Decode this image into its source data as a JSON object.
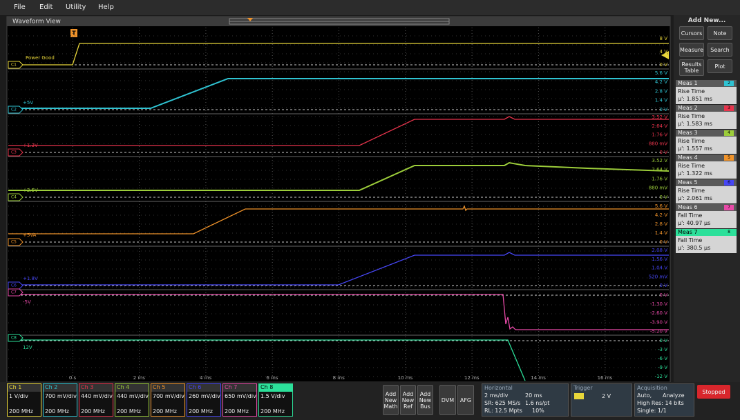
{
  "menu": [
    "File",
    "Edit",
    "Utility",
    "Help"
  ],
  "waveform_view": {
    "title": "Waveform View",
    "trigger_marker": "T",
    "x_labels": [
      "0 s",
      "2 ms",
      "4 ms",
      "6 ms",
      "8 ms",
      "10 ms",
      "12 ms",
      "14 ms",
      "16 ms"
    ],
    "channels": [
      {
        "marker": "C1",
        "label": "Power Good",
        "color": "#e8d63a",
        "scale": [
          "8 V",
          "4 V",
          "0 V"
        ]
      },
      {
        "marker": "C2",
        "label": "+5V",
        "color": "#2fc3d2",
        "scale": [
          "5.6 V",
          "4.2 V",
          "2.8 V",
          "1.4 V",
          "0 V"
        ]
      },
      {
        "marker": "C3",
        "label": "+1.3V",
        "color": "#e8344c",
        "scale": [
          "3.52 V",
          "2.64 V",
          "1.76 V",
          "880 mV",
          "0 V"
        ]
      },
      {
        "marker": "C4",
        "label": "+2.5V",
        "color": "#9ccd3a",
        "scale": [
          "3.52 V",
          "2.64 V",
          "1.76 V",
          "880 mV",
          "0 V"
        ]
      },
      {
        "marker": "C5",
        "label": "+5VA",
        "color": "#f0932a",
        "scale": [
          "5.6 V",
          "4.2 V",
          "2.8 V",
          "1.4 V",
          "0 V"
        ]
      },
      {
        "marker": "C6",
        "label": "+1.8V",
        "color": "#4646f5",
        "scale": [
          "2.08 V",
          "1.56 V",
          "1.04 V",
          "520 mV",
          "0 V"
        ]
      },
      {
        "marker": "C7",
        "label": "-5V",
        "color": "#e84aa8",
        "scale": [
          "0 V",
          "-1.30 V",
          "-2.60 V",
          "-3.90 V",
          "-5.20 V"
        ]
      },
      {
        "marker": "C8",
        "label": "12V",
        "color": "#2ce09a",
        "scale": [
          "0 V",
          "-3 V",
          "-6 V",
          "-9 V",
          "-12 V"
        ]
      }
    ]
  },
  "side_panel": {
    "title": "Add New...",
    "buttons": [
      "Cursors",
      "Note",
      "Measure",
      "Search",
      "Results Table",
      "Plot"
    ],
    "measurements": [
      {
        "name": "Meas 1",
        "source": "2",
        "type": "Rise Time",
        "value": "µ': 1.851 ms"
      },
      {
        "name": "Meas 2",
        "source": "3",
        "type": "Rise Time",
        "value": "µ': 1.583 ms"
      },
      {
        "name": "Meas 3",
        "source": "4",
        "type": "Rise Time",
        "value": "µ': 1.557 ms"
      },
      {
        "name": "Meas 4",
        "source": "5",
        "type": "Rise Time",
        "value": "µ': 1.322 ms"
      },
      {
        "name": "Meas 5",
        "source": "6",
        "type": "Rise Time",
        "value": "µ': 2.061 ms"
      },
      {
        "name": "Meas 6",
        "source": "7",
        "type": "Fall Time",
        "value": "µ': 40.97 µs"
      },
      {
        "name": "Meas 7",
        "source": "8",
        "type": "Fall Time",
        "value": "µ': 380.5 µs"
      }
    ]
  },
  "bottom_bar": {
    "channels": [
      {
        "name": "Ch 1",
        "scale": "1 V/div",
        "bandwidth": "200 MHz"
      },
      {
        "name": "Ch 2",
        "scale": "700 mV/div",
        "bandwidth": "200 MHz"
      },
      {
        "name": "Ch 3",
        "scale": "440 mV/div",
        "bandwidth": "200 MHz"
      },
      {
        "name": "Ch 4",
        "scale": "440 mV/div",
        "bandwidth": "200 MHz"
      },
      {
        "name": "Ch 5",
        "scale": "700 mV/div",
        "bandwidth": "200 MHz"
      },
      {
        "name": "Ch 6",
        "scale": "260 mV/div",
        "bandwidth": "200 MHz"
      },
      {
        "name": "Ch 7",
        "scale": "650 mV/div",
        "bandwidth": "200 MHz"
      },
      {
        "name": "Ch 8",
        "scale": "1.5 V/div",
        "bandwidth": "200 MHz"
      }
    ],
    "add_new": [
      "Add New Math",
      "Add New Ref",
      "Add New Bus"
    ],
    "dvm": "DVM",
    "afg": "AFG",
    "horizontal": {
      "title": "Horizontal",
      "scale": "2 ms/div",
      "duration": "20 ms",
      "sample_rate": "SR: 625 MS/s",
      "resolution": "1.6 ns/pt",
      "record_length": "RL: 12.5 Mpts",
      "position": "10%"
    },
    "trigger": {
      "title": "Trigger",
      "level": "2 V"
    },
    "acquisition": {
      "title": "Acquisition",
      "mode": "Auto,",
      "action": "Analyze",
      "resolution": "High Res: 14 bits",
      "count": "Single: 1/1"
    },
    "status": "Stopped"
  }
}
